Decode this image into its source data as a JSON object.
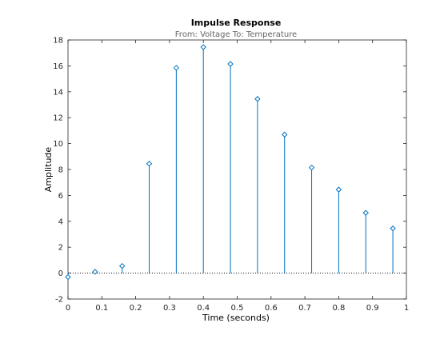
{
  "chart_data": {
    "type": "stem",
    "title": "Impulse Response",
    "subtitle": "From: Voltage  To: Temperature",
    "xlabel": "Time (seconds)",
    "ylabel": "Amplitude",
    "xlim": [
      0,
      1
    ],
    "ylim": [
      -2,
      18
    ],
    "xticks": [
      0,
      0.1,
      0.2,
      0.3,
      0.4,
      0.5,
      0.6,
      0.7,
      0.8,
      0.9,
      1
    ],
    "yticks": [
      -2,
      0,
      2,
      4,
      6,
      8,
      10,
      12,
      14,
      16,
      18
    ],
    "grid": false,
    "baseline": 0,
    "color": "#0072BD",
    "x": [
      0,
      0.08,
      0.16,
      0.24,
      0.32,
      0.4,
      0.48,
      0.56,
      0.64,
      0.72,
      0.8,
      0.88,
      0.96
    ],
    "y": [
      -0.3,
      0.1,
      0.55,
      8.45,
      15.85,
      17.45,
      16.15,
      13.45,
      10.7,
      8.15,
      6.45,
      4.65,
      3.45
    ]
  }
}
